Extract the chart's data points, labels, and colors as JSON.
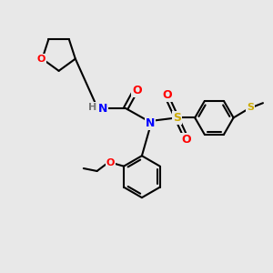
{
  "background_color": "#e8e8e8",
  "atom_colors": {
    "N": "#0000ff",
    "O": "#ff0000",
    "S": "#ccaa00",
    "H": "#777777",
    "C": "#000000"
  },
  "bond_color": "#000000",
  "bond_width": 1.5,
  "figsize": [
    3.0,
    3.0
  ],
  "dpi": 100
}
